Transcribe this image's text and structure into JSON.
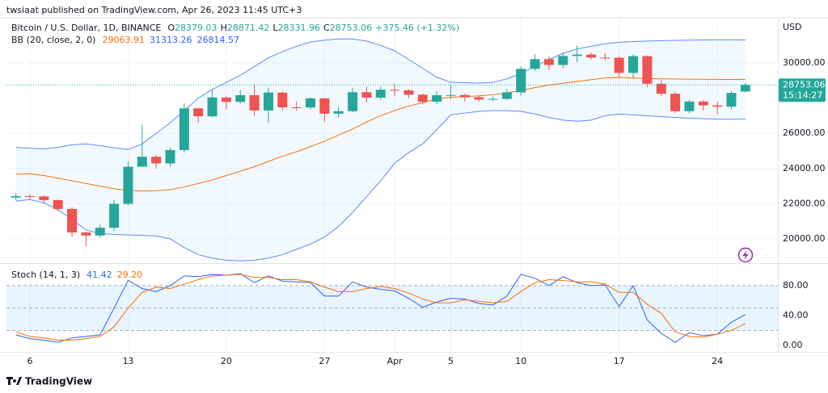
{
  "header": {
    "publisher": "twsiaat published on TradingView.com, Apr 26, 2023 11:45 UTC+3",
    "brand": "TradingView"
  },
  "chart_data": [
    {
      "type": "candlestick",
      "title": "Bitcoin / U.S. Dollar, 1D, BINANCE",
      "ohlc_legend": [
        {
          "label": "O",
          "value": "28379.03"
        },
        {
          "label": "H",
          "value": "28871.42"
        },
        {
          "label": "L",
          "value": "28331.96"
        },
        {
          "label": "C",
          "value": "28753.06"
        }
      ],
      "change": "+375.46 (+1.32%)",
      "axis_unit": "USD",
      "last_price_label": "28753.06",
      "countdown": "15:14:27",
      "categories": [
        null,
        "6",
        null,
        null,
        null,
        null,
        null,
        null,
        "13",
        null,
        null,
        null,
        null,
        null,
        null,
        "20",
        null,
        null,
        null,
        null,
        null,
        null,
        "27",
        null,
        null,
        null,
        null,
        "Apr",
        null,
        null,
        null,
        "5",
        null,
        null,
        null,
        null,
        "10",
        null,
        null,
        null,
        null,
        null,
        null,
        "17",
        null,
        null,
        null,
        null,
        null,
        null,
        "24",
        null,
        null
      ],
      "open": [
        22350,
        22430,
        22410,
        22200,
        21700,
        20360,
        20190,
        20630,
        21990,
        24100,
        24670,
        24290,
        25050,
        27420,
        26970,
        28040,
        27790,
        28170,
        27300,
        28320,
        27480,
        27470,
        27990,
        27120,
        27260,
        28340,
        28030,
        28480,
        28450,
        28200,
        27800,
        28170,
        28180,
        28050,
        27920,
        27960,
        28330,
        29670,
        30220,
        29890,
        30400,
        30480,
        30310,
        30300,
        29440,
        30390,
        28820,
        28250,
        27260,
        27810,
        27590,
        27520,
        28379.03
      ],
      "high": [
        22600,
        22560,
        22480,
        22250,
        21800,
        20420,
        20800,
        22200,
        24400,
        26500,
        24780,
        25200,
        27700,
        27450,
        28450,
        28100,
        28450,
        28800,
        28600,
        28380,
        27800,
        28050,
        28000,
        27500,
        28600,
        28650,
        28650,
        28800,
        28500,
        28250,
        28400,
        28750,
        28250,
        28150,
        28100,
        28500,
        29800,
        30500,
        30380,
        30600,
        31000,
        30600,
        30580,
        30400,
        30500,
        30420,
        29050,
        28350,
        27900,
        27900,
        27800,
        28400,
        28871.42
      ],
      "low": [
        22200,
        22250,
        22000,
        21600,
        20100,
        19570,
        20050,
        20450,
        21900,
        24100,
        24000,
        24100,
        24900,
        26600,
        26900,
        27350,
        27700,
        27000,
        26600,
        27300,
        27300,
        27350,
        26650,
        26900,
        27200,
        27750,
        27900,
        28100,
        28000,
        27650,
        27650,
        27950,
        27800,
        27800,
        27850,
        27900,
        28150,
        29550,
        29600,
        29700,
        30050,
        30200,
        30150,
        29200,
        29150,
        28650,
        28100,
        27150,
        27150,
        27300,
        27100,
        27400,
        28331.96
      ],
      "close": [
        22430,
        22410,
        22200,
        21700,
        20360,
        20190,
        20630,
        21990,
        24100,
        24670,
        24290,
        25050,
        27420,
        26970,
        28040,
        27790,
        28170,
        27300,
        28320,
        27480,
        27470,
        27990,
        27120,
        27260,
        28340,
        28030,
        28480,
        28450,
        28200,
        27800,
        28170,
        28180,
        28050,
        27920,
        27960,
        28330,
        29670,
        30220,
        29890,
        30400,
        30480,
        30310,
        30300,
        29440,
        30390,
        28820,
        28250,
        27260,
        27810,
        27590,
        27520,
        28300,
        28753.06
      ],
      "up_color": "#26a69a",
      "down_color": "#ef5350",
      "ylim": [
        18667,
        32575
      ],
      "yticks": [
        {
          "value": 20000,
          "label": "20000.00"
        },
        {
          "value": 22000,
          "label": "22000.00"
        },
        {
          "value": 24000,
          "label": "24000.00"
        },
        {
          "value": 26000,
          "label": "26000.00"
        },
        {
          "value": 30000,
          "label": "30000.00"
        }
      ],
      "indicator": {
        "name": "BB (20, close, 2, 0)",
        "fill": "#2196f3",
        "series": [
          {
            "color": "#ff6d00",
            "last_label": "29063.91",
            "values": [
              23680,
              23700,
              23600,
              23450,
              23300,
              23150,
              23000,
              22850,
              22750,
              22720,
              22740,
              22800,
              22950,
              23150,
              23350,
              23600,
              23850,
              24100,
              24400,
              24700,
              24950,
              25250,
              25550,
              25900,
              26250,
              26650,
              27000,
              27300,
              27550,
              27750,
              27950,
              28050,
              28100,
              28130,
              28200,
              28300,
              28450,
              28600,
              28750,
              28850,
              28950,
              29050,
              29150,
              29180,
              29150,
              29120,
              29100,
              29090,
              29080,
              29075,
              29070,
              29065,
              29063.91
            ]
          },
          {
            "color": "#2962ff",
            "last_label": "31313.26",
            "values": [
              25200,
              25150,
              25120,
              25200,
              25350,
              25400,
              25300,
              25180,
              25080,
              25400,
              26000,
              26600,
              27300,
              28000,
              28500,
              28900,
              29300,
              29800,
              30300,
              30650,
              30950,
              31200,
              31300,
              31370,
              31370,
              31250,
              31000,
              30700,
              30200,
              29700,
              29200,
              28900,
              28880,
              28860,
              28900,
              29100,
              29400,
              29800,
              30200,
              30550,
              30800,
              30950,
              31100,
              31180,
              31220,
              31250,
              31270,
              31290,
              31300,
              31310,
              31320,
              31320,
              31313.26
            ]
          },
          {
            "color": "#2962ff",
            "last_label": "26814.57",
            "values": [
              22150,
              22230,
              22050,
              21650,
              21100,
              20500,
              20300,
              20250,
              20220,
              20200,
              20160,
              20000,
              19500,
              19100,
              18900,
              18780,
              18740,
              18780,
              18900,
              19100,
              19400,
              19700,
              20100,
              20700,
              21500,
              22400,
              23300,
              24300,
              24900,
              25400,
              26200,
              27050,
              27150,
              27250,
              27290,
              27290,
              27250,
              27100,
              26900,
              26750,
              26690,
              26750,
              27000,
              27100,
              27050,
              27000,
              26950,
              26900,
              26860,
              26830,
              26810,
              26800,
              26814.57
            ]
          }
        ]
      }
    },
    {
      "type": "line",
      "title": "Stoch (14, 1, 3)",
      "series": [
        {
          "color": "#2962ff",
          "last_label": "41.42",
          "values": [
            14,
            9,
            7,
            4,
            10,
            12,
            14,
            50,
            87,
            76,
            72,
            80,
            93,
            92,
            95,
            94,
            96,
            84,
            93,
            86,
            85,
            84,
            66,
            66,
            85,
            78,
            75,
            73,
            63,
            51,
            58,
            63,
            62,
            56,
            54,
            66,
            95,
            90,
            80,
            92,
            84,
            80,
            81,
            52,
            80,
            34,
            16,
            4,
            17,
            13,
            15,
            31,
            41.42
          ]
        },
        {
          "color": "#ff6d00",
          "last_label": "29.20",
          "values": [
            18,
            12,
            10,
            7,
            7,
            9,
            12,
            25,
            50,
            71,
            78,
            76,
            82,
            88,
            93,
            94,
            95,
            91,
            91,
            88,
            88,
            85,
            78,
            72,
            72,
            76,
            79,
            76,
            70,
            62,
            57,
            57,
            61,
            59,
            57,
            59,
            72,
            84,
            88,
            87,
            85,
            85,
            82,
            71,
            71,
            55,
            43,
            18,
            12,
            11,
            15,
            20,
            29.2
          ]
        }
      ],
      "ylim": [
        -7.6,
        108
      ],
      "yticks": [
        {
          "value": 0,
          "label": "0.00"
        },
        {
          "value": 40,
          "label": "40.00"
        },
        {
          "value": 80,
          "label": "80.00"
        }
      ],
      "bands": [
        20,
        50,
        80
      ],
      "band_fill": "#2196f3"
    }
  ]
}
